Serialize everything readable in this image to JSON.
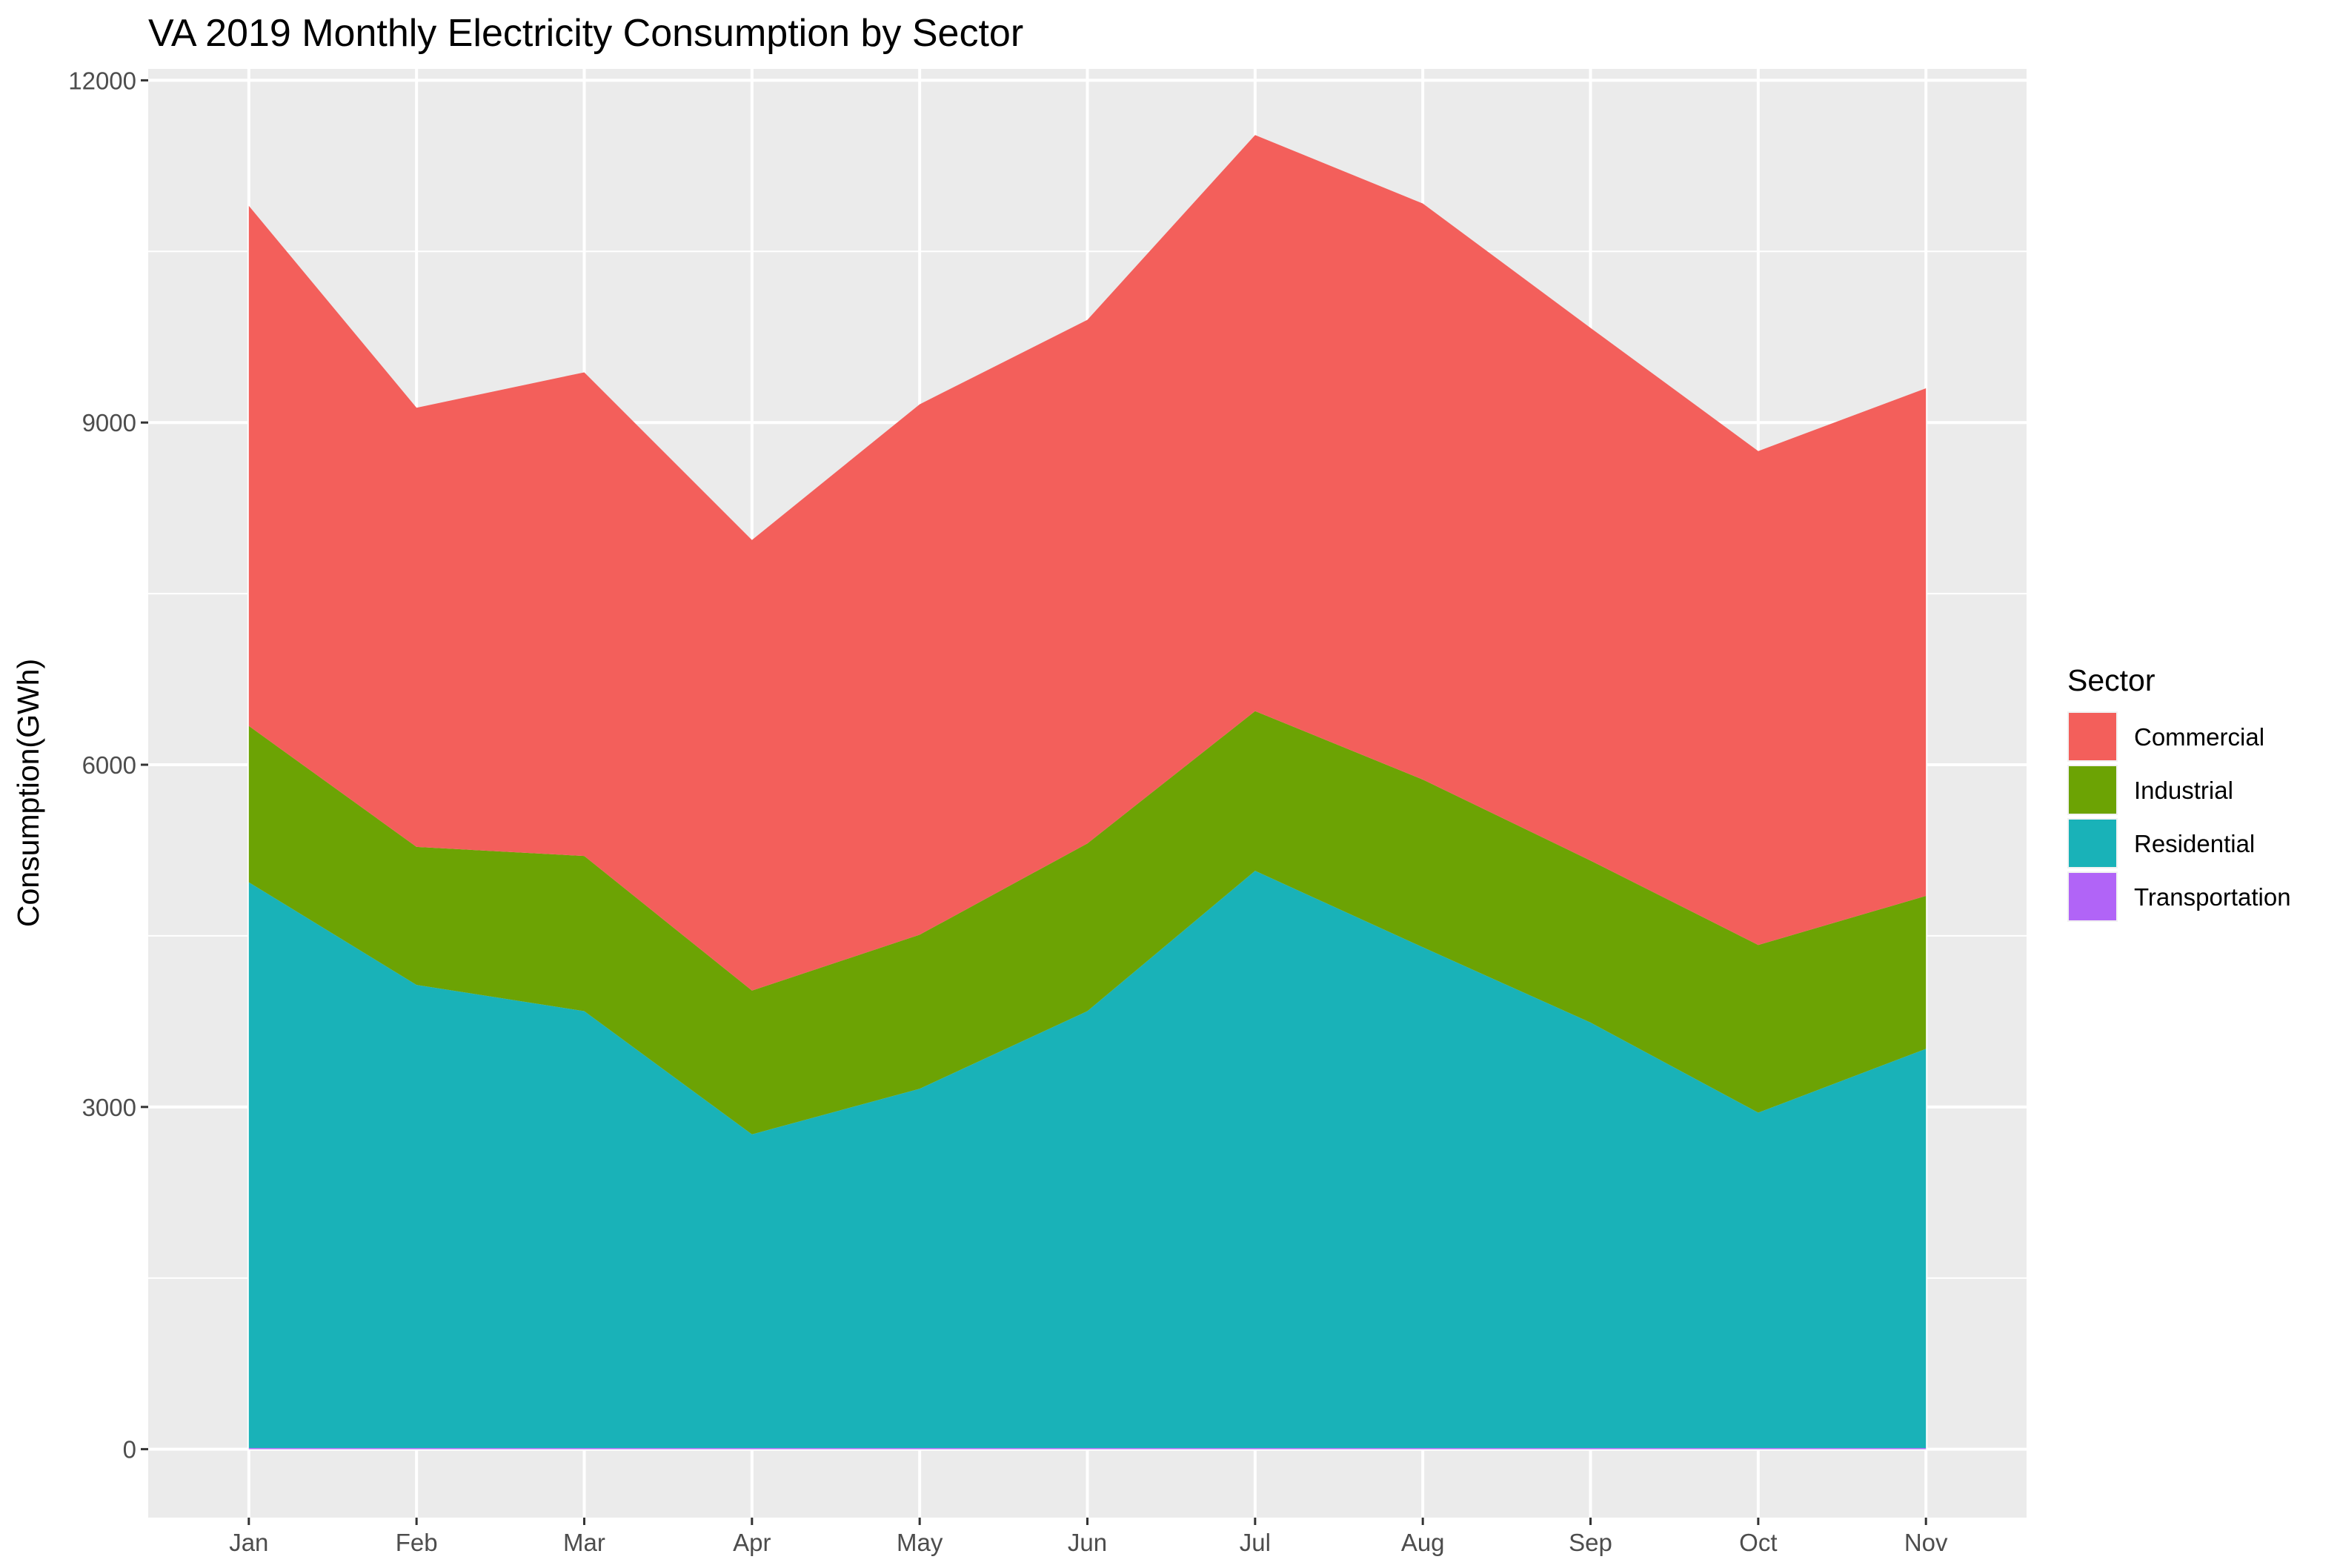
{
  "chart_data": {
    "type": "area",
    "stacked": true,
    "title": "VA 2019 Monthly Electricity Consumption by Sector",
    "xlabel": "",
    "ylabel": "Consumption(GWh)",
    "categories": [
      "Jan",
      "Feb",
      "Mar",
      "Apr",
      "May",
      "Jun",
      "Jul",
      "Aug",
      "Sep",
      "Oct",
      "Nov"
    ],
    "ylim": [
      -600,
      12100
    ],
    "yticks": [
      0,
      3000,
      6000,
      9000,
      12000
    ],
    "grid": true,
    "legend": {
      "title": "Sector",
      "position": "right"
    },
    "stack_order": [
      "Transportation",
      "Residential",
      "Industrial",
      "Commercial"
    ],
    "series": [
      {
        "name": "Commercial",
        "color": "#F35F5B",
        "values": [
          4560,
          3850,
          4240,
          3950,
          4650,
          4590,
          5050,
          5050,
          4670,
          4330,
          4450
        ]
      },
      {
        "name": "Industrial",
        "color": "#6CA304",
        "values": [
          1370,
          1210,
          1360,
          1260,
          1350,
          1470,
          1400,
          1470,
          1420,
          1470,
          1340
        ]
      },
      {
        "name": "Residential",
        "color": "#19B2B8",
        "values": [
          4960,
          4060,
          3830,
          2750,
          3150,
          3830,
          5060,
          4390,
          3730,
          2940,
          3500
        ]
      },
      {
        "name": "Transportation",
        "color": "#B164F7",
        "values": [
          10,
          10,
          10,
          10,
          10,
          10,
          10,
          10,
          10,
          10,
          10
        ]
      }
    ]
  }
}
